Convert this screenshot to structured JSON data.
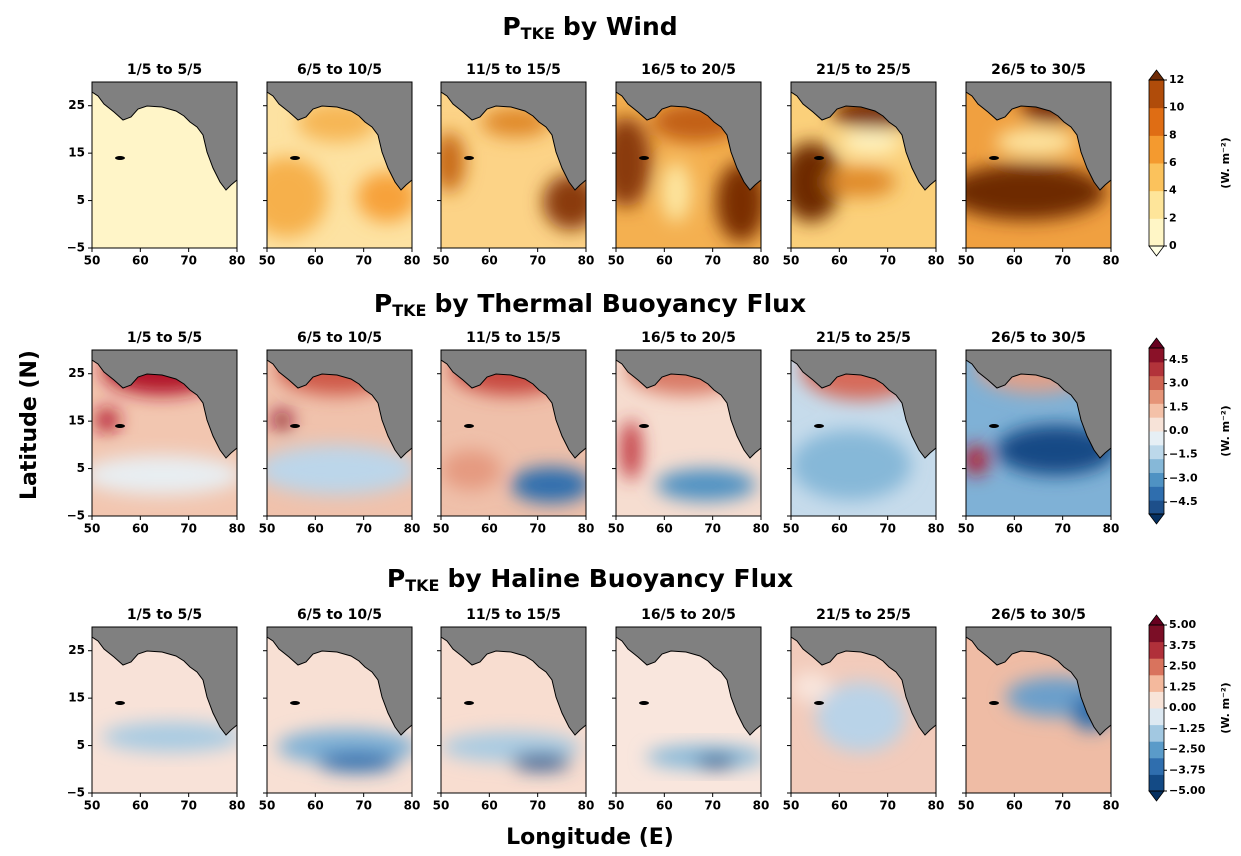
{
  "figure": {
    "x_label": "Longitude (E)",
    "y_label": "Latitude (N)",
    "xlim": [
      50,
      80
    ],
    "xticks": [
      50,
      60,
      70,
      80
    ],
    "ylim": [
      -5,
      30
    ],
    "yticks": [
      {
        "value": -5,
        "label": "−5"
      },
      5,
      15,
      25
    ],
    "panels": [
      "1/5 to 5/5",
      "6/5 to 10/5",
      "11/5 to 15/5",
      "16/5 to 20/5",
      "21/5 to 25/5",
      "26/5 to 30/5"
    ],
    "rows": [
      {
        "title_symbol": "P",
        "title_subscript": "TKE",
        "title_text": "by Wind",
        "colorbar": {
          "unit": "(W. m⁻²)",
          "lim": [
            0,
            12
          ],
          "ticks": [
            0,
            2,
            4,
            6,
            8,
            10,
            12
          ],
          "colors": [
            "#fff6c6",
            "#fee59a",
            "#fbc25c",
            "#f49a2f",
            "#df6d14",
            "#b04c0a"
          ],
          "extend_colors": [
            "#ffffe5",
            "#6e2a05"
          ]
        }
      },
      {
        "title_symbol": "P",
        "title_subscript": "TKE",
        "title_text": "by Thermal Buoyancy Flux",
        "colorbar": {
          "unit": "(W. m⁻²)",
          "lim": [
            -5.25,
            5.25
          ],
          "ticks": [
            {
              "value": -4.5,
              "label": "−4.5"
            },
            {
              "value": -3,
              "label": "−3.0"
            },
            {
              "value": -1.5,
              "label": "−1.5"
            },
            {
              "value": 0,
              "label": "0.0"
            },
            1.5,
            {
              "value": 3,
              "label": "3.0"
            },
            4.5
          ],
          "colors": [
            "#1d4f8a",
            "#2f6eae",
            "#4f92c3",
            "#86b8d8",
            "#bcd8ea",
            "#e6eff5",
            "#f7e3d8",
            "#f4c1a8",
            "#e59478",
            "#cf6452",
            "#b2333a",
            "#8a1128"
          ],
          "extend_colors": [
            "#053061",
            "#67001f"
          ]
        }
      },
      {
        "title_symbol": "P",
        "title_subscript": "TKE",
        "title_text": "by Haline Buoyancy Flux",
        "colorbar": {
          "unit": "(W. m⁻²)",
          "lim": [
            -5,
            5
          ],
          "ticks": [
            {
              "value": -5,
              "label": "−5.00"
            },
            {
              "value": -3.75,
              "label": "−3.75"
            },
            {
              "value": -2.5,
              "label": "−2.50"
            },
            {
              "value": -1.25,
              "label": "−1.25"
            },
            {
              "value": 0,
              "label": "0.00"
            },
            1.25,
            {
              "value": 2.5,
              "label": "2.50"
            },
            3.75,
            {
              "value": 5,
              "label": "5.00"
            }
          ],
          "colors": [
            "#134a85",
            "#2f6eae",
            "#5a9bc9",
            "#a2c8e1",
            "#dde9f2",
            "#f8e4d9",
            "#f4b99d",
            "#d9735d",
            "#b0303a",
            "#7b0e26"
          ],
          "extend_colors": [
            "#053061",
            "#67001f"
          ]
        }
      }
    ]
  }
}
